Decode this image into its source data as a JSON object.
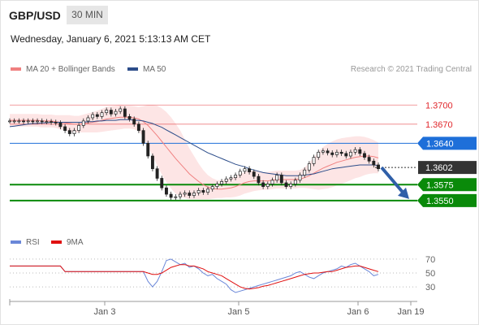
{
  "header": {
    "pair": "GBP/USD",
    "timeframe": "30 MIN",
    "datetime": "Wednesday, January 6, 2021 5:13:13 AM CET"
  },
  "legend": {
    "ma20": "MA 20 + Bollinger Bands",
    "ma50": "MA 50",
    "credit": "Research © 2021 Trading Central",
    "colors": {
      "ma20": "#f08080",
      "ma50": "#2c4d8a"
    }
  },
  "rsi_legend": {
    "rsi": "RSI",
    "ma9": "9MA",
    "colors": {
      "rsi": "#6a87d8",
      "ma9": "#e01010"
    }
  },
  "chart_data": [
    {
      "type": "candlestick",
      "ylim": [
        1.3532,
        1.3745
      ],
      "levels": [
        {
          "label": "1.3700",
          "value": 1.37,
          "kind": "resistance",
          "color": "#e0262b"
        },
        {
          "label": "1.3670",
          "value": 1.367,
          "kind": "resistance",
          "color": "#e0262b"
        },
        {
          "label": "1.3640",
          "value": 1.364,
          "kind": "pivot",
          "color": "#1e6fd9"
        },
        {
          "label": "1.3602",
          "value": 1.3602,
          "kind": "last-price",
          "color": "#333333"
        },
        {
          "label": "1.3575",
          "value": 1.3575,
          "kind": "support",
          "color": "#0a8a0a"
        },
        {
          "label": "1.3550",
          "value": 1.355,
          "kind": "support",
          "color": "#0a8a0a"
        }
      ],
      "closes": [
        1.3675,
        1.3675,
        1.3675,
        1.3674,
        1.3675,
        1.3674,
        1.3675,
        1.3674,
        1.3674,
        1.3673,
        1.3672,
        1.3666,
        1.366,
        1.3655,
        1.366,
        1.3668,
        1.3675,
        1.368,
        1.3685,
        1.3682,
        1.3688,
        1.3692,
        1.3686,
        1.369,
        1.3694,
        1.3682,
        1.3678,
        1.367,
        1.366,
        1.364,
        1.362,
        1.36,
        1.3585,
        1.357,
        1.356,
        1.3555,
        1.3556,
        1.356,
        1.3562,
        1.3558,
        1.3562,
        1.3566,
        1.3563,
        1.3568,
        1.3572,
        1.3576,
        1.358,
        1.3584,
        1.3586,
        1.359,
        1.3596,
        1.36,
        1.3595,
        1.3588,
        1.3578,
        1.3572,
        1.3576,
        1.3582,
        1.359,
        1.3578,
        1.3572,
        1.3576,
        1.3582,
        1.359,
        1.3598,
        1.3608,
        1.3618,
        1.3626,
        1.3628,
        1.3625,
        1.3622,
        1.3626,
        1.3624,
        1.362,
        1.3626,
        1.363,
        1.3624,
        1.3618,
        1.3612,
        1.3606,
        1.36
      ],
      "ma20": [
        1.3676,
        1.3676,
        1.3676,
        1.3676,
        1.3676,
        1.3676,
        1.3676,
        1.3675,
        1.3675,
        1.3675,
        1.3674,
        1.3673,
        1.3672,
        1.3671,
        1.367,
        1.367,
        1.3671,
        1.3672,
        1.3673,
        1.3674,
        1.3676,
        1.3678,
        1.3679,
        1.368,
        1.3681,
        1.3681,
        1.3681,
        1.368,
        1.3678,
        1.3674,
        1.3668,
        1.366,
        1.3652,
        1.3643,
        1.3634,
        1.3625,
        1.3616,
        1.3608,
        1.36,
        1.3592,
        1.3586,
        1.358,
        1.3575,
        1.3571,
        1.3569,
        1.3568,
        1.3568,
        1.3569,
        1.357,
        1.3572,
        1.3575,
        1.3578,
        1.358,
        1.3581,
        1.3581,
        1.3581,
        1.3581,
        1.3582,
        1.3583,
        1.3583,
        1.3583,
        1.3583,
        1.3583,
        1.3584,
        1.3586,
        1.3589,
        1.3593,
        1.3597,
        1.3601,
        1.3604,
        1.3607,
        1.361,
        1.3612,
        1.3614,
        1.3616,
        1.3618,
        1.3619,
        1.362,
        1.362,
        1.3619,
        1.3617
      ],
      "ma50": [
        1.3666,
        1.3667,
        1.3668,
        1.3669,
        1.367,
        1.3671,
        1.3671,
        1.3672,
        1.3672,
        1.3673,
        1.3673,
        1.3673,
        1.3673,
        1.3673,
        1.3673,
        1.3673,
        1.3673,
        1.3674,
        1.3674,
        1.3675,
        1.3675,
        1.3676,
        1.3676,
        1.3676,
        1.3677,
        1.3677,
        1.3677,
        1.3676,
        1.3676,
        1.3675,
        1.3673,
        1.3671,
        1.3668,
        1.3665,
        1.3661,
        1.3657,
        1.3653,
        1.3649,
        1.3645,
        1.3641,
        1.3637,
        1.3633,
        1.3629,
        1.3625,
        1.3622,
        1.3619,
        1.3616,
        1.3613,
        1.361,
        1.3607,
        1.3605,
        1.3603,
        1.36,
        1.3598,
        1.3596,
        1.3594,
        1.3593,
        1.3592,
        1.3591,
        1.359,
        1.3589,
        1.3589,
        1.3589,
        1.3589,
        1.359,
        1.3591,
        1.3592,
        1.3594,
        1.3596,
        1.3598,
        1.36,
        1.3601,
        1.3602,
        1.3603,
        1.3604,
        1.3605,
        1.3606,
        1.3606,
        1.3606,
        1.3606,
        1.3605
      ],
      "bb_halfwidth": [
        0.001,
        0.001,
        0.001,
        0.001,
        0.001,
        0.001,
        0.001,
        0.001,
        0.001,
        0.001,
        0.001,
        0.0011,
        0.0012,
        0.0013,
        0.0013,
        0.0013,
        0.0014,
        0.0015,
        0.0016,
        0.0017,
        0.0018,
        0.0019,
        0.0019,
        0.0019,
        0.0019,
        0.0018,
        0.0018,
        0.0018,
        0.0019,
        0.0024,
        0.0032,
        0.004,
        0.0047,
        0.0052,
        0.0055,
        0.0056,
        0.0055,
        0.0052,
        0.0046,
        0.004,
        0.0034,
        0.0028,
        0.0023,
        0.0019,
        0.0016,
        0.0014,
        0.0014,
        0.0014,
        0.0015,
        0.0016,
        0.0017,
        0.0017,
        0.0017,
        0.0016,
        0.0015,
        0.0014,
        0.0014,
        0.0014,
        0.0014,
        0.0014,
        0.0014,
        0.0014,
        0.0014,
        0.0014,
        0.0016,
        0.002,
        0.0025,
        0.003,
        0.0033,
        0.0035,
        0.0036,
        0.0036,
        0.0036,
        0.0035,
        0.0034,
        0.0033,
        0.0032,
        0.003,
        0.0028,
        0.0026,
        0.0024
      ],
      "projection": {
        "from": 1.3602,
        "to": 1.355
      }
    },
    {
      "type": "line",
      "name": "RSI",
      "ylim": [
        15,
        85
      ],
      "reference_lines": [
        70,
        50,
        30
      ],
      "rsi": [
        60,
        60,
        60,
        60,
        60,
        60,
        60,
        60,
        60,
        60,
        60,
        60,
        52,
        52,
        52,
        52,
        52,
        52,
        52,
        52,
        52,
        52,
        52,
        52,
        52,
        52,
        52,
        52,
        52,
        52,
        38,
        30,
        38,
        52,
        68,
        70,
        66,
        62,
        64,
        58,
        60,
        56,
        50,
        46,
        48,
        42,
        38,
        34,
        26,
        22,
        24,
        26,
        28,
        30,
        32,
        34,
        36,
        38,
        40,
        42,
        44,
        46,
        50,
        52,
        48,
        44,
        42,
        46,
        50,
        52,
        54,
        56,
        60,
        58,
        62,
        64,
        60,
        56,
        52,
        46,
        48
      ],
      "ma9": [
        60,
        60,
        60,
        60,
        60,
        60,
        60,
        60,
        60,
        60,
        60,
        60,
        52,
        52,
        52,
        52,
        52,
        52,
        52,
        52,
        52,
        52,
        52,
        52,
        52,
        52,
        52,
        52,
        52,
        52,
        50,
        48,
        48,
        50,
        54,
        58,
        60,
        62,
        62,
        60,
        60,
        58,
        56,
        52,
        50,
        48,
        46,
        42,
        38,
        34,
        30,
        28,
        27,
        28,
        29,
        31,
        32,
        34,
        36,
        38,
        40,
        42,
        44,
        46,
        48,
        49,
        50,
        50,
        51,
        52,
        52,
        54,
        56,
        58,
        59,
        60,
        60,
        58,
        56,
        54,
        52
      ]
    }
  ],
  "x_axis": {
    "ticks": [
      "Jan 3",
      "Jan 5",
      "Jan 6",
      "Jan 19"
    ]
  }
}
